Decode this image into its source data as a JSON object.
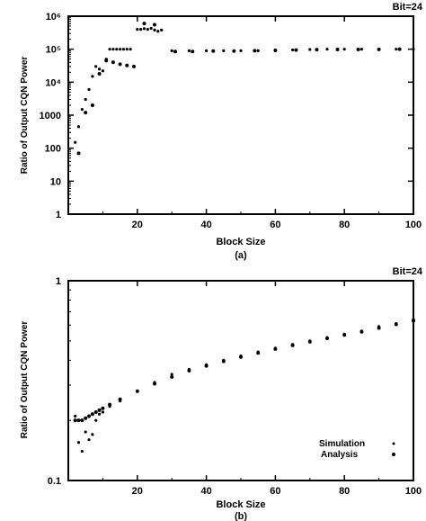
{
  "chart_data": [
    {
      "type": "scatter",
      "panel_label": "(a)",
      "corner_label": "Bit=24",
      "title": "",
      "xlabel": "Block Size",
      "ylabel": "Ratio of Output CQN Power",
      "xlim": [
        0,
        100
      ],
      "ylim": [
        1,
        1000000
      ],
      "yscale": "log",
      "xticks": [
        20,
        40,
        60,
        80,
        100
      ],
      "yticks": [
        {
          "value": 1,
          "label": "1"
        },
        {
          "value": 10,
          "label": "10"
        },
        {
          "value": 100,
          "label": "100"
        },
        {
          "value": 1000,
          "label": "1000"
        },
        {
          "value": 10000,
          "label": "10⁴"
        },
        {
          "value": 100000,
          "label": "10⁵"
        },
        {
          "value": 1000000,
          "label": "10⁶"
        }
      ],
      "grid": false,
      "series": [
        {
          "x": [
            2,
            3,
            4,
            5,
            6,
            7,
            8,
            9,
            10,
            11,
            12,
            13,
            14,
            15,
            16,
            17,
            18,
            20,
            21,
            22,
            23,
            24,
            25,
            26,
            27,
            30,
            35,
            40,
            45,
            50,
            55,
            60,
            65,
            70,
            75,
            80,
            85,
            90,
            95,
            100
          ],
          "y": [
            150,
            450,
            1500,
            3000,
            6000,
            15000,
            30000,
            25000,
            22000,
            50000,
            100000,
            100000,
            100000,
            100000,
            100000,
            100000,
            100000,
            400000,
            400000,
            420000,
            400000,
            430000,
            380000,
            350000,
            380000,
            90000,
            90000,
            90000,
            90000,
            90000,
            90000,
            95000,
            95000,
            98000,
            100000,
            100000,
            100000,
            100000,
            100000,
            100000
          ]
        },
        {
          "x": [
            3,
            5,
            7,
            9,
            11,
            13,
            15,
            17,
            19,
            22,
            25,
            31,
            36,
            42,
            48,
            54,
            60,
            66,
            72,
            78,
            84,
            90,
            96
          ],
          "y": [
            70,
            1200,
            2000,
            18000,
            45000,
            40000,
            35000,
            32000,
            30000,
            600000,
            550000,
            85000,
            85000,
            88000,
            88000,
            90000,
            92000,
            94000,
            97000,
            98000,
            98000,
            99000,
            100000
          ]
        }
      ]
    },
    {
      "type": "scatter",
      "panel_label": "(b)",
      "corner_label": "Bit=24",
      "title": "",
      "xlabel": "Block Size",
      "ylabel": "Ratio of Output CQN Power",
      "xlim": [
        0,
        100
      ],
      "ylim": [
        0.1,
        1
      ],
      "yscale": "log",
      "xticks": [
        20,
        40,
        60,
        80,
        100
      ],
      "yticks": [
        {
          "value": 0.1,
          "label": "0.1"
        },
        {
          "value": 1,
          "label": "1"
        }
      ],
      "grid": false,
      "legend": "bottom-right",
      "series": [
        {
          "name": "Simulation",
          "x": [
            2,
            3,
            4,
            5,
            6,
            7,
            8,
            9,
            10,
            12,
            15,
            20,
            25,
            30,
            35,
            40,
            45,
            50,
            55,
            60,
            65,
            70,
            75,
            80,
            85,
            90,
            95,
            100
          ],
          "y": [
            0.21,
            0.155,
            0.14,
            0.175,
            0.16,
            0.17,
            0.2,
            0.215,
            0.22,
            0.235,
            0.25,
            0.28,
            0.31,
            0.34,
            0.36,
            0.38,
            0.4,
            0.42,
            0.44,
            0.46,
            0.48,
            0.5,
            0.52,
            0.54,
            0.56,
            0.59,
            0.61,
            0.64
          ]
        },
        {
          "name": "Analysis",
          "x": [
            2,
            3,
            4,
            5,
            6,
            7,
            8,
            9,
            10,
            12,
            15,
            20,
            25,
            30,
            35,
            40,
            45,
            50,
            55,
            60,
            65,
            70,
            75,
            80,
            85,
            90,
            95,
            100
          ],
          "y": [
            0.2,
            0.2,
            0.2,
            0.205,
            0.21,
            0.215,
            0.22,
            0.225,
            0.23,
            0.24,
            0.255,
            0.28,
            0.305,
            0.33,
            0.355,
            0.375,
            0.395,
            0.415,
            0.435,
            0.455,
            0.475,
            0.495,
            0.515,
            0.535,
            0.555,
            0.58,
            0.605,
            0.63
          ]
        }
      ]
    }
  ]
}
